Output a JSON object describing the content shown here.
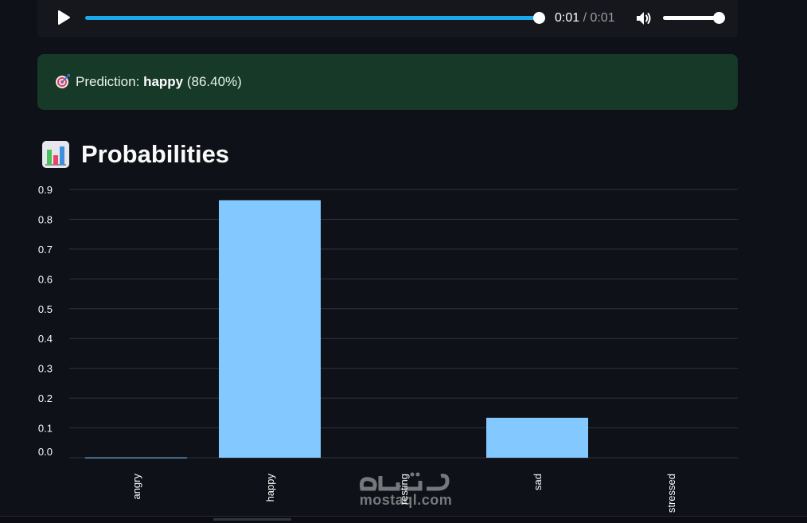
{
  "audio": {
    "current_time": "0:01",
    "separator": "/",
    "total_time": "0:01",
    "progress": 1.0,
    "volume": 1.0,
    "play_icon": "play-icon",
    "volume_icon": "volume-icon"
  },
  "prediction": {
    "icon": "target-icon",
    "label": "Prediction:",
    "emotion": "happy",
    "confidence": "(86.40%)"
  },
  "heading": {
    "icon": "bar-chart-icon",
    "title": "Probabilities"
  },
  "chart_data": {
    "type": "bar",
    "title": "",
    "xlabel": "",
    "ylabel": "",
    "categories": [
      "angry",
      "happy",
      "resting",
      "sad",
      "stressed"
    ],
    "values": [
      0.001,
      0.864,
      0.0,
      0.134,
      0.0
    ],
    "yticks": [
      "0.0",
      "0.1",
      "0.2",
      "0.3",
      "0.4",
      "0.5",
      "0.6",
      "0.7",
      "0.8",
      "0.9"
    ],
    "ylim": [
      0,
      0.9
    ],
    "grid": true,
    "bar_color": "#83c9ff"
  },
  "watermark": {
    "text": "mostaql.com"
  },
  "colors": {
    "background": "#0e1117",
    "player_bg": "#16171d",
    "progress": "#1ba8e8",
    "success_bg": "#173928",
    "gridline": "#31333f"
  }
}
